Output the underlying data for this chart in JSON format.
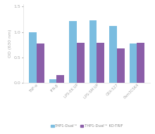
{
  "categories": [
    "TNF-α",
    "IFN-β",
    "LPS-EK UP",
    "LPS-SM UP",
    "CRX-527",
    "Pam3CSK4"
  ],
  "thp1_dual": [
    1.0,
    0.08,
    1.22,
    1.23,
    1.12,
    0.78
  ],
  "thp1_ko_trif": [
    0.77,
    0.16,
    0.79,
    0.79,
    0.68,
    0.79
  ],
  "color_blue": "#7BBDE0",
  "color_purple": "#8B5EA8",
  "ylabel": "OD (630 nm)",
  "ylim": [
    0.0,
    1.55
  ],
  "yticks": [
    0.0,
    0.5,
    1.0,
    1.5
  ],
  "legend_label1": "THP1-Dual™",
  "legend_label2": "THP1-Dual™ KO-TRIF",
  "bar_width": 0.38,
  "background_color": "#ffffff"
}
